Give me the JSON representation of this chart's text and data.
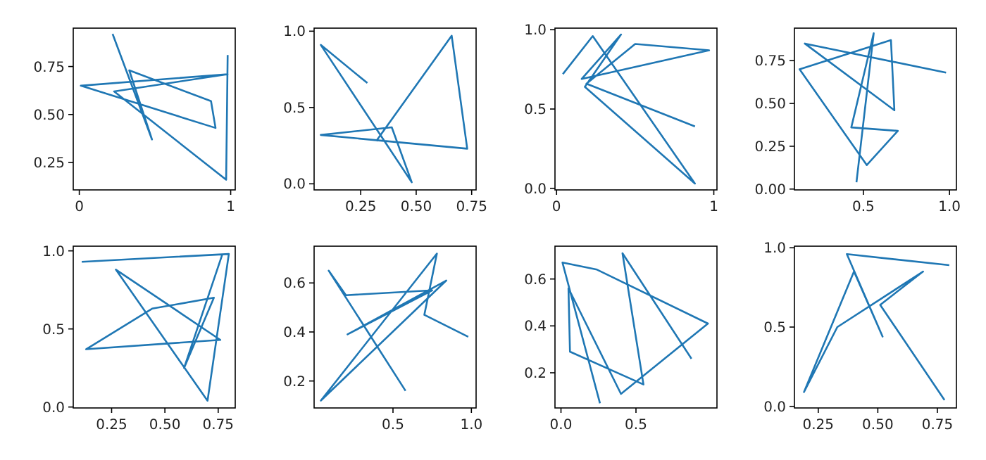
{
  "chart_data": [
    {
      "type": "line",
      "x": [
        0.22,
        0.48,
        0.33,
        0.87,
        0.9,
        0.01,
        0.98,
        0.23,
        0.97,
        0.98
      ],
      "values": [
        0.92,
        0.37,
        0.73,
        0.57,
        0.43,
        0.65,
        0.71,
        0.62,
        0.16,
        0.81
      ],
      "color": "#1f77b4",
      "xlim": [
        -0.04,
        1.03
      ],
      "ylim": [
        0.107,
        0.95
      ],
      "xticks": [
        0,
        1
      ],
      "yticks": [
        0.25,
        {
          "value": 0.5,
          "label": "0.50"
        },
        0.75
      ]
    },
    {
      "type": "line",
      "x": [
        0.28,
        0.07,
        0.48,
        0.39,
        0.07,
        0.73,
        0.66,
        0.32
      ],
      "values": [
        0.66,
        0.91,
        0.01,
        0.37,
        0.32,
        0.23,
        0.97,
        0.28
      ],
      "color": "#1f77b4",
      "xlim": [
        0.04,
        0.77
      ],
      "ylim": [
        -0.04,
        1.02
      ],
      "xticks": [
        0.25,
        {
          "value": 0.5,
          "label": "0.50"
        },
        0.75
      ],
      "yticks": [
        {
          "value": 0,
          "label": "0.0"
        },
        0.5,
        {
          "value": 1,
          "label": "1.0"
        }
      ]
    },
    {
      "type": "line",
      "x": [
        0.04,
        0.23,
        0.88,
        0.18,
        0.41,
        0.16,
        0.97,
        0.5,
        0.19,
        0.88
      ],
      "values": [
        0.72,
        0.96,
        0.03,
        0.64,
        0.97,
        0.69,
        0.87,
        0.91,
        0.66,
        0.39
      ],
      "color": "#1f77b4",
      "xlim": [
        -0.01,
        1.02
      ],
      "ylim": [
        -0.01,
        1.01
      ],
      "xticks": [
        0,
        1
      ],
      "yticks": [
        {
          "value": 0,
          "label": "0.0"
        },
        0.5,
        {
          "value": 1,
          "label": "1.0"
        }
      ]
    },
    {
      "type": "line",
      "x": [
        0.46,
        0.56,
        0.43,
        0.7,
        0.52,
        0.13,
        0.66,
        0.68,
        0.16,
        0.98
      ],
      "values": [
        0.04,
        0.91,
        0.36,
        0.34,
        0.14,
        0.7,
        0.87,
        0.46,
        0.85,
        0.68
      ],
      "color": "#1f77b4",
      "xlim": [
        0.1,
        1.04
      ],
      "ylim": [
        -0.005,
        0.94
      ],
      "xticks": [
        0.5,
        {
          "value": 1,
          "label": "1.0"
        }
      ],
      "yticks": [
        {
          "value": 0,
          "label": "0.00"
        },
        0.25,
        {
          "value": 0.5,
          "label": "0.50"
        },
        0.75
      ]
    },
    {
      "type": "line",
      "x": [
        0.11,
        0.8,
        0.7,
        0.27,
        0.76,
        0.13,
        0.44,
        0.73,
        0.59,
        0.77
      ],
      "values": [
        0.93,
        0.98,
        0.04,
        0.88,
        0.43,
        0.37,
        0.63,
        0.7,
        0.25,
        0.98
      ],
      "color": "#1f77b4",
      "xlim": [
        0.07,
        0.83
      ],
      "ylim": [
        -0.006,
        1.03
      ],
      "xticks": [
        0.25,
        {
          "value": 0.5,
          "label": "0.50"
        },
        0.75
      ],
      "yticks": [
        {
          "value": 0,
          "label": "0.0"
        },
        0.5,
        {
          "value": 1,
          "label": "1.0"
        }
      ]
    },
    {
      "type": "line",
      "x": [
        0.98,
        0.7,
        0.78,
        0.04,
        0.84,
        0.21,
        0.75,
        0.2,
        0.09,
        0.58
      ],
      "values": [
        0.38,
        0.47,
        0.72,
        0.12,
        0.61,
        0.39,
        0.57,
        0.55,
        0.65,
        0.16
      ],
      "color": "#1f77b4",
      "xlim": [
        -0.003,
        1.03
      ],
      "ylim": [
        0.09,
        0.75
      ],
      "xticks": [
        0.5,
        {
          "value": 1,
          "label": "1.0"
        }
      ],
      "yticks": [
        0.2,
        0.4,
        0.6
      ]
    },
    {
      "type": "line",
      "x": [
        0.26,
        0.01,
        0.24,
        0.98,
        0.4,
        0.05,
        0.06,
        0.55,
        0.41,
        0.87
      ],
      "values": [
        0.07,
        0.67,
        0.64,
        0.41,
        0.11,
        0.56,
        0.29,
        0.15,
        0.71,
        0.26
      ],
      "color": "#1f77b4",
      "xlim": [
        -0.04,
        1.04
      ],
      "ylim": [
        0.05,
        0.74
      ],
      "xticks": [
        {
          "value": 0,
          "label": "0.0"
        },
        0.5
      ],
      "yticks": [
        0.2,
        0.4,
        0.6
      ]
    },
    {
      "type": "line",
      "x": [
        0.78,
        0.51,
        0.69,
        0.33,
        0.19,
        0.4,
        0.52,
        0.37,
        0.8
      ],
      "values": [
        0.04,
        0.64,
        0.85,
        0.5,
        0.09,
        0.85,
        0.44,
        0.96,
        0.89
      ],
      "color": "#1f77b4",
      "xlim": [
        0.15,
        0.83
      ],
      "ylim": [
        -0.01,
        1.01
      ],
      "xticks": [
        0.25,
        {
          "value": 0.5,
          "label": "0.50"
        },
        0.75
      ],
      "yticks": [
        {
          "value": 0,
          "label": "0.0"
        },
        0.5,
        {
          "value": 1,
          "label": "1.0"
        }
      ]
    }
  ]
}
